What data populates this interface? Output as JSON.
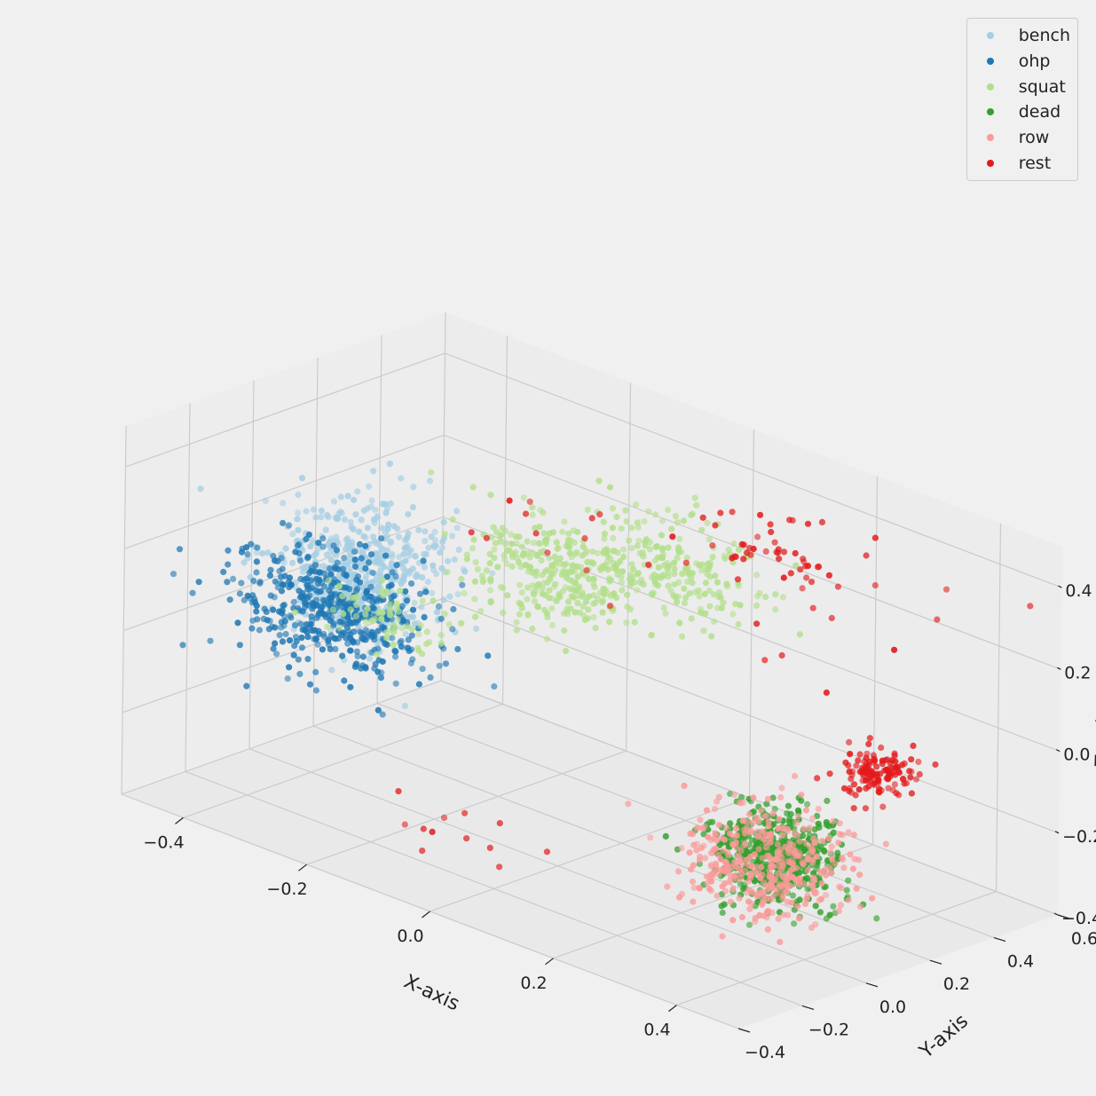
{
  "chart_data": {
    "type": "scatter",
    "projection": "3d",
    "title": "",
    "xlabel": "X-axis",
    "ylabel": "Y-axis",
    "zlabel": "Z-axis",
    "xlim": [
      -0.5,
      0.5
    ],
    "ylim": [
      -0.4,
      0.6
    ],
    "zlim": [
      -0.4,
      0.5
    ],
    "xticks": [
      -0.4,
      -0.2,
      0.0,
      0.2,
      0.4
    ],
    "xtick_labels": [
      "−0.4",
      "−0.2",
      "0.0",
      "0.2",
      "0.4"
    ],
    "yticks": [
      -0.4,
      -0.2,
      0.0,
      0.2,
      0.4,
      0.6
    ],
    "ytick_labels": [
      "−0.4",
      "−0.2",
      "0.0",
      "0.2",
      "0.4",
      "0.6"
    ],
    "zticks": [
      -0.4,
      -0.2,
      0.0,
      0.2,
      0.4
    ],
    "ztick_labels": [
      "−0.4",
      "−0.2",
      "0.0",
      "0.2",
      "0.4"
    ],
    "grid": true,
    "legend_position": "top-right",
    "series": [
      {
        "name": "bench",
        "color": "#a6cee3",
        "clusters": [
          {
            "center": [
              -0.43,
              0.22,
              0.03
            ],
            "spread": [
              0.06,
              0.08,
              0.07
            ],
            "count": 420
          },
          {
            "center": [
              -0.35,
              0.02,
              0.04
            ],
            "spread": [
              0.05,
              0.05,
              0.05
            ],
            "count": 120
          }
        ]
      },
      {
        "name": "ohp",
        "color": "#1f78b4",
        "clusters": [
          {
            "center": [
              -0.44,
              0.14,
              -0.07
            ],
            "spread": [
              0.07,
              0.08,
              0.07
            ],
            "count": 480
          }
        ]
      },
      {
        "name": "squat",
        "color": "#b2df8a",
        "clusters": [
          {
            "center": [
              -0.2,
              0.36,
              0.1
            ],
            "spread": [
              0.06,
              0.07,
              0.06
            ],
            "count": 300
          },
          {
            "center": [
              -0.02,
              0.38,
              0.22
            ],
            "spread": [
              0.07,
              0.07,
              0.06
            ],
            "count": 220
          },
          {
            "center": [
              -0.3,
              0.05,
              0.02
            ],
            "spread": [
              0.05,
              0.04,
              0.03
            ],
            "count": 60
          }
        ]
      },
      {
        "name": "dead",
        "color": "#33a02c",
        "clusters": [
          {
            "center": [
              0.34,
              0.02,
              -0.19
            ],
            "spread": [
              0.04,
              0.06,
              0.05
            ],
            "count": 520
          }
        ]
      },
      {
        "name": "row",
        "color": "#fb9a99",
        "clusters": [
          {
            "center": [
              0.34,
              0.0,
              -0.2
            ],
            "spread": [
              0.05,
              0.08,
              0.06
            ],
            "count": 380
          }
        ]
      },
      {
        "name": "rest",
        "color": "#e31a1c",
        "clusters": [
          {
            "center": [
              0.32,
              0.38,
              -0.1
            ],
            "spread": [
              0.02,
              0.05,
              0.025
            ],
            "count": 130
          },
          {
            "center": [
              0.06,
              0.55,
              0.25
            ],
            "spread": [
              0.05,
              0.05,
              0.03
            ],
            "count": 40
          },
          {
            "center": [
              0.12,
              0.5,
              0.2
            ],
            "spread": [
              0.1,
              0.12,
              0.08
            ],
            "count": 20
          },
          {
            "center": [
              -0.18,
              0.3,
              0.2
            ],
            "spread": [
              0.07,
              0.12,
              0.05
            ],
            "count": 14
          },
          {
            "center": [
              -0.05,
              -0.2,
              -0.3
            ],
            "spread": [
              0.06,
              0.06,
              0.04
            ],
            "count": 12
          }
        ]
      }
    ]
  }
}
